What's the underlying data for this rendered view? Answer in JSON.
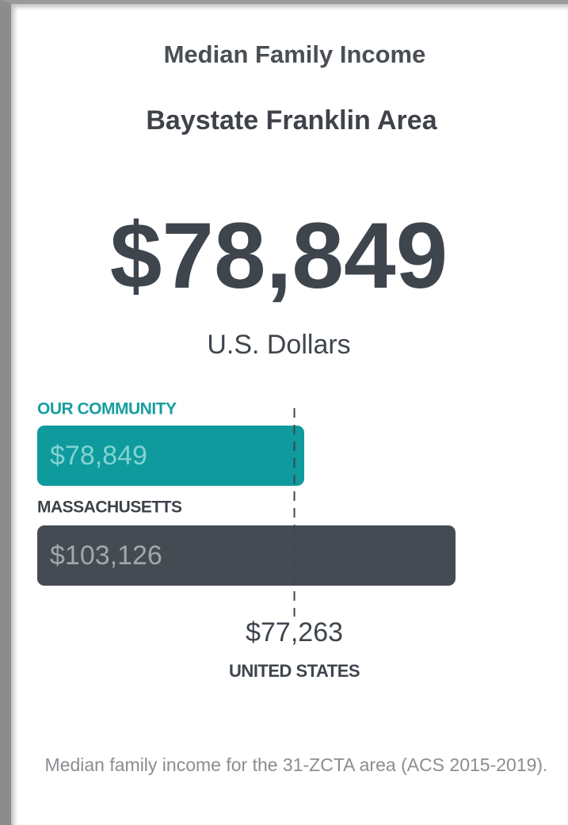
{
  "chart_data": {
    "type": "bar",
    "orientation": "horizontal",
    "title": "Median Family Income",
    "subtitle": "Baystate Franklin Area",
    "headline": "$78,849",
    "headline_unit": "U.S. Dollars",
    "categories": [
      "OUR COMMUNITY",
      "MASSACHUSETTS"
    ],
    "values": [
      78849,
      103126
    ],
    "value_labels": [
      "$78,849",
      "$103,126"
    ],
    "colors": [
      "#0f9a9d",
      "#454b53"
    ],
    "label_colors": [
      "#1a9ea0",
      "#3d4249"
    ],
    "value_label_colors": [
      "#82d2d3",
      "#a3a7ad"
    ],
    "xlim": [
      36000,
      103126
    ],
    "reference": {
      "value": 77263,
      "value_label": "$77,263",
      "label": "UNITED STATES"
    },
    "note": "Median family income for the 31-ZCTA area (ACS 2015-2019)."
  }
}
